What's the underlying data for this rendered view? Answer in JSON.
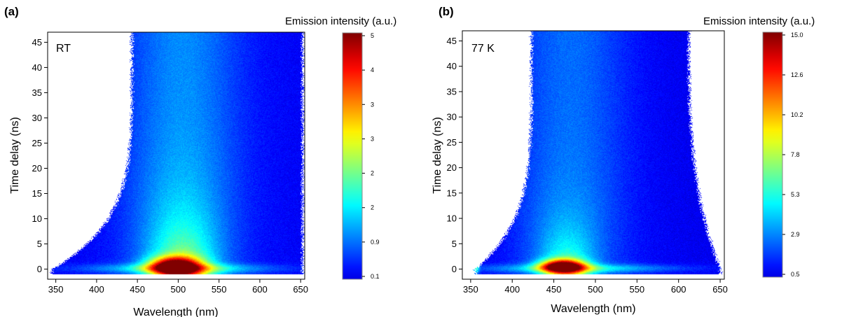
{
  "chart_data": [
    {
      "type": "heatmap",
      "panel_label": "(a)",
      "annotation": "RT",
      "xlabel": "Wavelength (nm)",
      "ylabel": "Time delay (ns)",
      "xlim": [
        340,
        655
      ],
      "ylim": [
        -2,
        47
      ],
      "xticks": [
        350,
        400,
        450,
        500,
        550,
        600,
        650
      ],
      "yticks": [
        0,
        5,
        10,
        15,
        20,
        25,
        30,
        35,
        40,
        45
      ],
      "colorbar": {
        "title": "Emission intensity (a.u.)",
        "ticks": [
          "5",
          "4",
          "3",
          "3",
          "2",
          "2",
          "0.9",
          "0.1"
        ],
        "range": [
          0.1,
          5
        ]
      },
      "features": {
        "peak_wavelength": 495,
        "peak_delay": 0.5,
        "peak_intensity": 5,
        "emission_edges_at_top": [
          443,
          652
        ],
        "emission_edges_at_zero": [
          345,
          652
        ]
      }
    },
    {
      "type": "heatmap",
      "panel_label": "(b)",
      "annotation": "77 K",
      "xlabel": "Wavelength (nm)",
      "ylabel": "Time delay (ns)",
      "xlim": [
        340,
        655
      ],
      "ylim": [
        -2,
        47
      ],
      "xticks": [
        350,
        400,
        450,
        500,
        550,
        600,
        650
      ],
      "yticks": [
        0,
        5,
        10,
        15,
        20,
        25,
        30,
        35,
        40,
        45
      ],
      "colorbar": {
        "title": "Emission intensity (a.u.)",
        "ticks": [
          "15.0",
          "12.6",
          "10.2",
          "7.8",
          "5.3",
          "2.9",
          "0.5"
        ],
        "range": [
          0.5,
          15
        ]
      },
      "features": {
        "peak_wavelength": 460,
        "peak_delay": 0.5,
        "peak_intensity": 15,
        "emission_edges_at_top": [
          423,
          612
        ],
        "emission_edges_at_zero": [
          355,
          650
        ]
      }
    }
  ]
}
